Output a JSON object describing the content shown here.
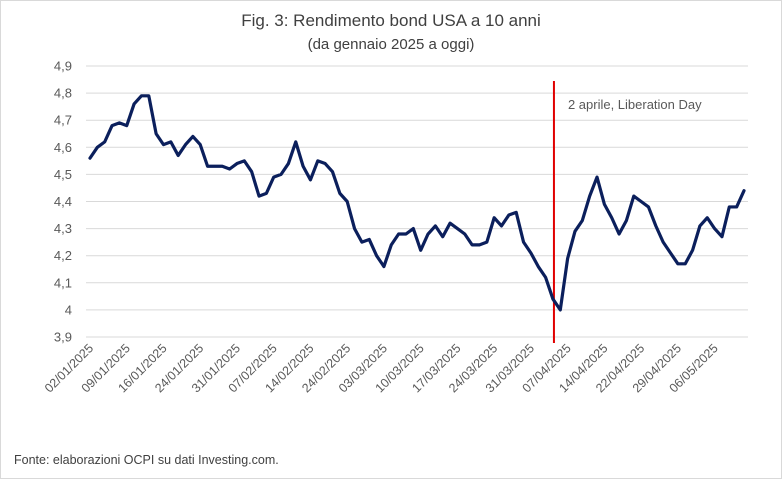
{
  "chart_data": {
    "type": "line",
    "title": "Fig. 3: Rendimento bond USA a 10 anni",
    "subtitle": "(da gennaio 2025 a oggi)",
    "source": "Fonte: elaborazioni OCPI su dati Investing.com.",
    "ylim": [
      3.9,
      4.9
    ],
    "yticks": [
      "3,9",
      "4",
      "4,1",
      "4,2",
      "4,3",
      "4,4",
      "4,5",
      "4,6",
      "4,7",
      "4,8",
      "4,9"
    ],
    "xticks": [
      {
        "index": 0,
        "label": "02/01/2025"
      },
      {
        "index": 5,
        "label": "09/01/2025"
      },
      {
        "index": 10,
        "label": "16/01/2025"
      },
      {
        "index": 15,
        "label": "24/01/2025"
      },
      {
        "index": 20,
        "label": "31/01/2025"
      },
      {
        "index": 25,
        "label": "07/02/2025"
      },
      {
        "index": 30,
        "label": "14/02/2025"
      },
      {
        "index": 35,
        "label": "24/02/2025"
      },
      {
        "index": 40,
        "label": "03/03/2025"
      },
      {
        "index": 45,
        "label": "10/03/2025"
      },
      {
        "index": 50,
        "label": "17/03/2025"
      },
      {
        "index": 55,
        "label": "24/03/2025"
      },
      {
        "index": 60,
        "label": "31/03/2025"
      },
      {
        "index": 65,
        "label": "07/04/2025"
      },
      {
        "index": 70,
        "label": "14/04/2025"
      },
      {
        "index": 75,
        "label": "22/04/2025"
      },
      {
        "index": 80,
        "label": "29/04/2025"
      },
      {
        "index": 85,
        "label": "06/05/2025"
      }
    ],
    "series": [
      {
        "values": [
          4.56,
          4.6,
          4.62,
          4.68,
          4.69,
          4.68,
          4.76,
          4.79,
          4.79,
          4.65,
          4.61,
          4.62,
          4.57,
          4.61,
          4.64,
          4.61,
          4.53,
          4.53,
          4.53,
          4.52,
          4.54,
          4.55,
          4.51,
          4.42,
          4.43,
          4.49,
          4.5,
          4.54,
          4.62,
          4.53,
          4.48,
          4.55,
          4.54,
          4.51,
          4.43,
          4.4,
          4.3,
          4.25,
          4.26,
          4.2,
          4.16,
          4.24,
          4.28,
          4.28,
          4.3,
          4.22,
          4.28,
          4.31,
          4.27,
          4.32,
          4.3,
          4.28,
          4.24,
          4.24,
          4.25,
          4.34,
          4.31,
          4.35,
          4.36,
          4.25,
          4.21,
          4.16,
          4.12,
          4.04,
          4.0,
          4.19,
          4.29,
          4.33,
          4.42,
          4.49,
          4.39,
          4.34,
          4.28,
          4.33,
          4.42,
          4.4,
          4.38,
          4.31,
          4.25,
          4.21,
          4.17,
          4.17,
          4.22,
          4.31,
          4.34,
          4.3,
          4.27,
          4.38,
          4.38,
          4.44
        ]
      }
    ],
    "annotations": [
      {
        "index": 63,
        "label": "2 aprile, Liberation Day",
        "color": "#e00000"
      }
    ],
    "line_color": "#0b1f5c",
    "grid": "horizontal"
  }
}
